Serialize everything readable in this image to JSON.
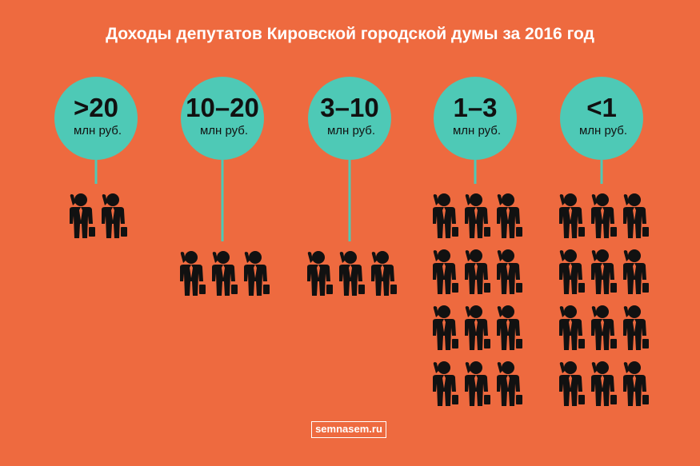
{
  "chart_data": {
    "type": "pictogram",
    "title": "Доходы депутатов Кировской городской думы за 2016 год",
    "unit": "млн руб.",
    "categories": [
      ">20",
      "10–20",
      "3–10",
      "1–3",
      "<1"
    ],
    "values": [
      2,
      3,
      3,
      12,
      12
    ]
  },
  "watermark": "semnasem.ru",
  "colors": {
    "background": "#EE6A3F",
    "bubble": "#4EC9B6",
    "icon": "#111111",
    "text": "#FFFFFF"
  },
  "icon": "businessman-icon"
}
